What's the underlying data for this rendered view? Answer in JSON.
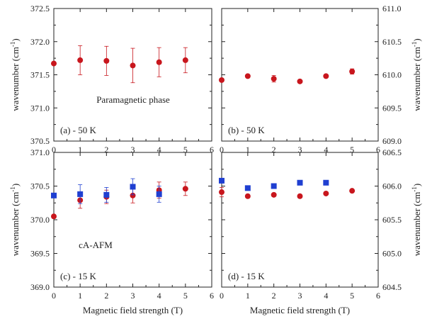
{
  "colors": {
    "red": "#c8161d",
    "blue": "#1f3fd1",
    "axis": "#222222"
  },
  "chart_data": [
    {
      "id": "a",
      "type": "scatter",
      "panel_label": "(a) - 50 K",
      "annotation": "Paramagnetic phase",
      "xlim": [
        0,
        6
      ],
      "ylim": [
        370.5,
        372.5
      ],
      "xticks": [
        "0",
        "1",
        "2",
        "3",
        "4",
        "5",
        "6"
      ],
      "yticks": [
        "370.5",
        "371.0",
        "371.5",
        "372.0",
        "372.5"
      ],
      "yaxis_side": "left",
      "ylabel": "wavenumber (cm",
      "ylabel_sup": "-1",
      "ylabel_close": ")",
      "xlabel": "",
      "series": [
        {
          "color": "red",
          "marker": "circle",
          "x": [
            0,
            1,
            2,
            3,
            4,
            5
          ],
          "y": [
            371.67,
            371.72,
            371.71,
            371.64,
            371.69,
            371.72
          ],
          "err": [
            0,
            0.22,
            0.22,
            0.26,
            0.22,
            0.19
          ]
        }
      ]
    },
    {
      "id": "b",
      "type": "scatter",
      "panel_label": "(b) - 50 K",
      "annotation": "",
      "xlim": [
        0,
        6
      ],
      "ylim": [
        609.0,
        611.0
      ],
      "xticks": [
        "0",
        "1",
        "2",
        "3",
        "4",
        "5",
        "6"
      ],
      "yticks": [
        "609.0",
        "609.5",
        "610.0",
        "610.5",
        "611.0"
      ],
      "yaxis_side": "right",
      "ylabel": "wavenumber (cm",
      "ylabel_sup": "-1",
      "ylabel_close": ")",
      "xlabel": "",
      "series": [
        {
          "color": "red",
          "marker": "circle",
          "x": [
            0,
            1,
            2,
            3,
            4,
            5
          ],
          "y": [
            609.92,
            609.98,
            609.94,
            609.9,
            609.98,
            610.05
          ],
          "err": [
            0,
            0,
            0.05,
            0,
            0,
            0.04
          ]
        }
      ]
    },
    {
      "id": "c",
      "type": "scatter",
      "panel_label": "(c) - 15 K",
      "annotation": "cA-AFM",
      "xlim": [
        0,
        6
      ],
      "ylim": [
        369.0,
        371.0
      ],
      "xticks": [
        "0",
        "1",
        "2",
        "3",
        "4",
        "5",
        "6"
      ],
      "yticks": [
        "369.0",
        "369.5",
        "370.0",
        "370.5",
        "371.0"
      ],
      "yaxis_side": "left",
      "ylabel": "wavenumber (cm",
      "ylabel_sup": "-1",
      "ylabel_close": ")",
      "xlabel": "Magnetic field strength (T)",
      "series": [
        {
          "color": "red",
          "marker": "circle",
          "x": [
            0,
            1,
            2,
            3,
            4,
            5
          ],
          "y": [
            370.05,
            370.29,
            370.34,
            370.36,
            370.44,
            370.46
          ],
          "err": [
            0,
            0.12,
            0.1,
            0.11,
            0.12,
            0.1
          ]
        },
        {
          "color": "blue",
          "marker": "square",
          "x": [
            0,
            1,
            2,
            3,
            4
          ],
          "y": [
            370.36,
            370.38,
            370.37,
            370.49,
            370.38
          ],
          "err": [
            0,
            0.14,
            0.11,
            0.12,
            0.12
          ]
        }
      ]
    },
    {
      "id": "d",
      "type": "scatter",
      "panel_label": "(d) - 15 K",
      "annotation": "",
      "xlim": [
        0,
        6
      ],
      "ylim": [
        604.5,
        606.5
      ],
      "xticks": [
        "0",
        "1",
        "2",
        "3",
        "4",
        "5",
        "6"
      ],
      "yticks": [
        "604.5",
        "605.0",
        "605.5",
        "606.0",
        "606.5"
      ],
      "yaxis_side": "right",
      "ylabel": "wavenumber (cm",
      "ylabel_sup": "-1",
      "ylabel_close": ")",
      "xlabel": "Magnetic field strength (T)",
      "series": [
        {
          "color": "red",
          "marker": "circle",
          "x": [
            0,
            1,
            2,
            3,
            4,
            5
          ],
          "y": [
            605.91,
            605.85,
            605.87,
            605.85,
            605.89,
            605.93
          ],
          "err": [
            0.07,
            0,
            0,
            0,
            0,
            0
          ]
        },
        {
          "color": "blue",
          "marker": "square",
          "x": [
            0,
            1,
            2,
            3,
            4
          ],
          "y": [
            606.08,
            605.97,
            606.0,
            606.05,
            606.05
          ],
          "err": [
            0,
            0,
            0,
            0,
            0
          ]
        }
      ]
    }
  ]
}
